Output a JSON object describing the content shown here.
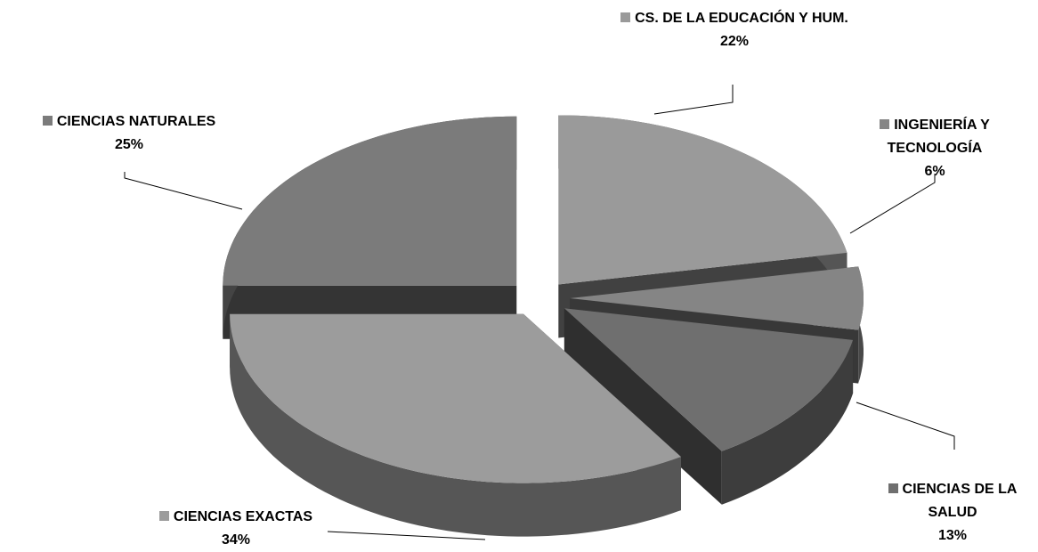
{
  "chart_data": {
    "type": "pie",
    "categories": [
      "CS. DE LA EDUCACIÓN Y HUM.",
      "INGENIERÍA Y TECNOLOGÍA",
      "CIENCIAS DE LA SALUD",
      "CIENCIAS EXACTAS",
      "CIENCIAS NATURALES"
    ],
    "values": [
      22,
      6,
      13,
      34,
      25
    ],
    "value_labels": [
      "22%",
      "6%",
      "13%",
      "34%",
      "25%"
    ],
    "colors": [
      "#9a9a9a",
      "#858585",
      "#6f6f6f",
      "#9c9c9c",
      "#7b7b7b"
    ]
  }
}
